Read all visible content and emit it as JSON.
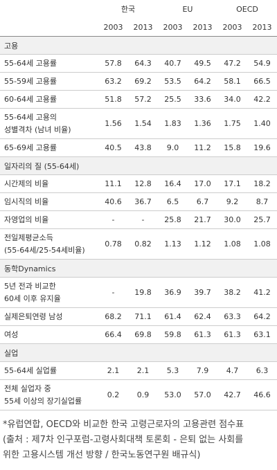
{
  "header": {
    "groups": [
      "한국",
      "EU",
      "OECD"
    ],
    "years": [
      "2003",
      "2013",
      "2003",
      "2013",
      "2003",
      "2013"
    ]
  },
  "sections": [
    {
      "title": "고용",
      "rows": [
        {
          "label": [
            "55-64세 고용률"
          ],
          "cells": [
            "57.8",
            "64.3",
            "40.7",
            "49.5",
            "47.2",
            "54.9"
          ]
        },
        {
          "label": [
            "55-59세 고용률"
          ],
          "cells": [
            "63.2",
            "69.2",
            "53.5",
            "64.2",
            "58.1",
            "66.5"
          ]
        },
        {
          "label": [
            "60-64세 고용률"
          ],
          "cells": [
            "51.8",
            "57.2",
            "25.5",
            "33.6",
            "34.0",
            "42.2"
          ]
        },
        {
          "label": [
            "55-64세 고용의",
            "성별격차 (남녀 비율)"
          ],
          "cells": [
            "1.56",
            "1.54",
            "1.83",
            "1.36",
            "1.75",
            "1.40"
          ]
        },
        {
          "label": [
            "65-69세 고용률"
          ],
          "cells": [
            "40.5",
            "43.8",
            "9.0",
            "11.2",
            "15.8",
            "19.6"
          ]
        }
      ]
    },
    {
      "title": "일자리의 질 (55-64세)",
      "rows": [
        {
          "label": [
            "시간제의 비율"
          ],
          "cells": [
            "11.1",
            "12.8",
            "16.4",
            "17.0",
            "17.1",
            "18.2"
          ]
        },
        {
          "label": [
            "임시직의 비율"
          ],
          "cells": [
            "40.6",
            "36.7",
            "6.5",
            "6.7",
            "9.2",
            "8.7"
          ]
        },
        {
          "label": [
            "자영업의 비율"
          ],
          "cells": [
            "-",
            "-",
            "25.8",
            "21.7",
            "30.0",
            "25.7"
          ]
        },
        {
          "label": [
            "전일제평균소득",
            "(55-64세/25-54세비율)"
          ],
          "cells": [
            "0.78",
            "0.82",
            "1.13",
            "1.12",
            "1.08",
            "1.08"
          ]
        }
      ]
    },
    {
      "title": "동학Dynamics",
      "rows": [
        {
          "label": [
            "5년 전과 비교한",
            "60세 이후 유지율"
          ],
          "cells": [
            "-",
            "19.8",
            "36.9",
            "39.7",
            "38.2",
            "41.2"
          ]
        },
        {
          "label": [
            "실제은퇴연령 남성"
          ],
          "cells": [
            "68.2",
            "71.1",
            "61.4",
            "62.4",
            "63.3",
            "64.2"
          ]
        },
        {
          "label": [
            "여성"
          ],
          "cells": [
            "66.4",
            "69.8",
            "59.8",
            "61.3",
            "61.3",
            "63.1"
          ]
        }
      ]
    },
    {
      "title": "실업",
      "rows": [
        {
          "label": [
            "55-64세 실업률"
          ],
          "cells": [
            "2.1",
            "2.1",
            "5.3",
            "7.9",
            "4.7",
            "6.3"
          ]
        },
        {
          "label": [
            "전체 실업자 중",
            "55세 이상의 장기실업률"
          ],
          "cells": [
            "0.2",
            "0.9",
            "53.0",
            "57.0",
            "42.7",
            "46.6"
          ]
        }
      ]
    }
  ],
  "caption": [
    "*유럽연합, OECD와 비교한 한국 고령근로자의 고용관련 점수표",
    "(출처 : 제7차 인구포럼-고령사회대책 토론회 - 은퇴 없는 사회를",
    "위한 고용시스템 개선 방향 / 한국노동연구원 배규식)"
  ]
}
